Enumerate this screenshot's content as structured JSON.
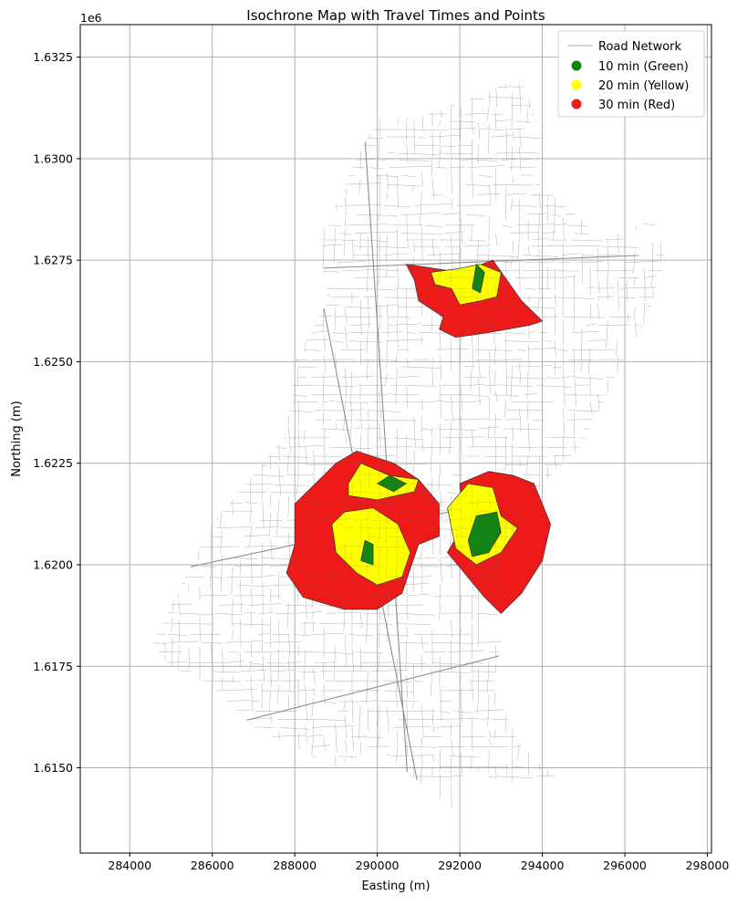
{
  "figure": {
    "title": "Isochrone Map with Travel Times and Points",
    "xlabel": "Easting (m)",
    "ylabel": "Northing (m)",
    "y_offset_text": "1e6"
  },
  "legend": {
    "placement": "top-right",
    "items": [
      {
        "label": "Road Network",
        "kind": "line",
        "color": "#aaaaaa"
      },
      {
        "label": "10 min (Green)",
        "kind": "marker",
        "color": "#128412"
      },
      {
        "label": "20 min (Yellow)",
        "kind": "marker",
        "color": "#ffff00"
      },
      {
        "label": "30 min (Red)",
        "kind": "marker",
        "color": "#ee1a1a"
      }
    ]
  },
  "colors": {
    "road": "#a8a8a8",
    "green": "#128412",
    "yellow": "#ffff00",
    "red": "#ee1a1a",
    "grid": "#b0b0b0"
  },
  "chart_data": {
    "type": "map",
    "grid": true,
    "xlim": [
      282800,
      298100
    ],
    "ylim": [
      1612900,
      1633300
    ],
    "xticks": [
      284000,
      286000,
      288000,
      290000,
      292000,
      294000,
      296000,
      298000
    ],
    "xtick_labels": [
      "284000",
      "286000",
      "288000",
      "290000",
      "292000",
      "294000",
      "296000",
      "298000"
    ],
    "yticks": [
      1615000,
      1617500,
      1620000,
      1622500,
      1625000,
      1627500,
      1630000,
      1632500
    ],
    "ytick_labels": [
      "1.6150",
      "1.6175",
      "1.6200",
      "1.6225",
      "1.6250",
      "1.6275",
      "1.6300",
      "1.6325"
    ],
    "road_network_boundary": [
      [
        284500,
        1618000
      ],
      [
        286000,
        1621000
      ],
      [
        287800,
        1623200
      ],
      [
        288000,
        1625000
      ],
      [
        288800,
        1626500
      ],
      [
        288600,
        1628000
      ],
      [
        289500,
        1630000
      ],
      [
        290000,
        1631000
      ],
      [
        291000,
        1631000
      ],
      [
        292300,
        1631500
      ],
      [
        293500,
        1632000
      ],
      [
        294000,
        1630500
      ],
      [
        293800,
        1629500
      ],
      [
        295500,
        1628000
      ],
      [
        296700,
        1628500
      ],
      [
        297000,
        1627500
      ],
      [
        296500,
        1626000
      ],
      [
        295700,
        1624500
      ],
      [
        295000,
        1623000
      ],
      [
        294000,
        1622000
      ],
      [
        293000,
        1620000
      ],
      [
        293000,
        1618000
      ],
      [
        292800,
        1617000
      ],
      [
        293500,
        1615500
      ],
      [
        294300,
        1614800
      ],
      [
        293000,
        1614600
      ],
      [
        292300,
        1615000
      ],
      [
        291800,
        1614000
      ],
      [
        291200,
        1614500
      ],
      [
        290000,
        1615500
      ],
      [
        289000,
        1615000
      ],
      [
        288000,
        1615500
      ],
      [
        287000,
        1616000
      ],
      [
        286000,
        1617000
      ],
      [
        285000,
        1617500
      ]
    ],
    "isochrones": [
      {
        "name": "30 min (Red)",
        "color": "#ee1a1a",
        "polygons": [
          [
            [
              290700,
              1627400
            ],
            [
              292000,
              1627200
            ],
            [
              292800,
              1627500
            ],
            [
              293500,
              1626500
            ],
            [
              294000,
              1626000
            ],
            [
              293700,
              1625900
            ],
            [
              292600,
              1625700
            ],
            [
              291900,
              1625600
            ],
            [
              291500,
              1625800
            ],
            [
              291600,
              1626100
            ],
            [
              291000,
              1626500
            ],
            [
              290900,
              1627000
            ]
          ],
          [
            [
              288000,
              1621500
            ],
            [
              289000,
              1622500
            ],
            [
              289500,
              1622800
            ],
            [
              290400,
              1622500
            ],
            [
              291000,
              1622100
            ],
            [
              291500,
              1621500
            ],
            [
              291500,
              1620700
            ],
            [
              291000,
              1620500
            ],
            [
              290600,
              1619300
            ],
            [
              290000,
              1618900
            ],
            [
              289200,
              1618900
            ],
            [
              288200,
              1619200
            ],
            [
              287800,
              1619800
            ],
            [
              288000,
              1620500
            ]
          ],
          [
            [
              291700,
              1620300
            ],
            [
              292100,
              1621000
            ],
            [
              292000,
              1622000
            ],
            [
              292700,
              1622300
            ],
            [
              293300,
              1622200
            ],
            [
              293800,
              1622000
            ],
            [
              294200,
              1621000
            ],
            [
              294000,
              1620100
            ],
            [
              293500,
              1619300
            ],
            [
              293000,
              1618800
            ],
            [
              292600,
              1619200
            ]
          ]
        ]
      },
      {
        "name": "20 min (Yellow)",
        "color": "#ffff00",
        "polygons": [
          [
            [
              291300,
              1627200
            ],
            [
              292000,
              1627300
            ],
            [
              292500,
              1627400
            ],
            [
              293000,
              1627200
            ],
            [
              292900,
              1626600
            ],
            [
              292500,
              1626500
            ],
            [
              292000,
              1626400
            ],
            [
              291800,
              1626800
            ],
            [
              291400,
              1626900
            ]
          ],
          [
            [
              289500,
              1619800
            ],
            [
              289000,
              1620300
            ],
            [
              288900,
              1621000
            ],
            [
              289200,
              1621300
            ],
            [
              289900,
              1621400
            ],
            [
              290500,
              1621000
            ],
            [
              290800,
              1620300
            ],
            [
              290600,
              1619700
            ],
            [
              290000,
              1619500
            ]
          ],
          [
            [
              289300,
              1622000
            ],
            [
              289600,
              1622500
            ],
            [
              290300,
              1622200
            ],
            [
              291000,
              1622100
            ],
            [
              290900,
              1621800
            ],
            [
              290000,
              1621600
            ],
            [
              289300,
              1621700
            ]
          ],
          [
            [
              291700,
              1621400
            ],
            [
              292200,
              1622000
            ],
            [
              292800,
              1621900
            ],
            [
              293000,
              1621200
            ],
            [
              293400,
              1620900
            ],
            [
              293000,
              1620300
            ],
            [
              292400,
              1620000
            ],
            [
              291900,
              1620400
            ]
          ]
        ]
      },
      {
        "name": "10 min (Green)",
        "color": "#128412",
        "polygons": [
          [
            [
              292400,
              1627400
            ],
            [
              292600,
              1627200
            ],
            [
              292500,
              1626700
            ],
            [
              292300,
              1626800
            ]
          ],
          [
            [
              289600,
              1620100
            ],
            [
              289700,
              1620600
            ],
            [
              289900,
              1620500
            ],
            [
              289900,
              1620000
            ]
          ],
          [
            [
              290000,
              1622000
            ],
            [
              290300,
              1622200
            ],
            [
              290700,
              1622000
            ],
            [
              290400,
              1621800
            ]
          ],
          [
            [
              292200,
              1620600
            ],
            [
              292400,
              1621200
            ],
            [
              292900,
              1621300
            ],
            [
              293000,
              1620800
            ],
            [
              292700,
              1620300
            ],
            [
              292300,
              1620200
            ]
          ]
        ]
      }
    ]
  }
}
